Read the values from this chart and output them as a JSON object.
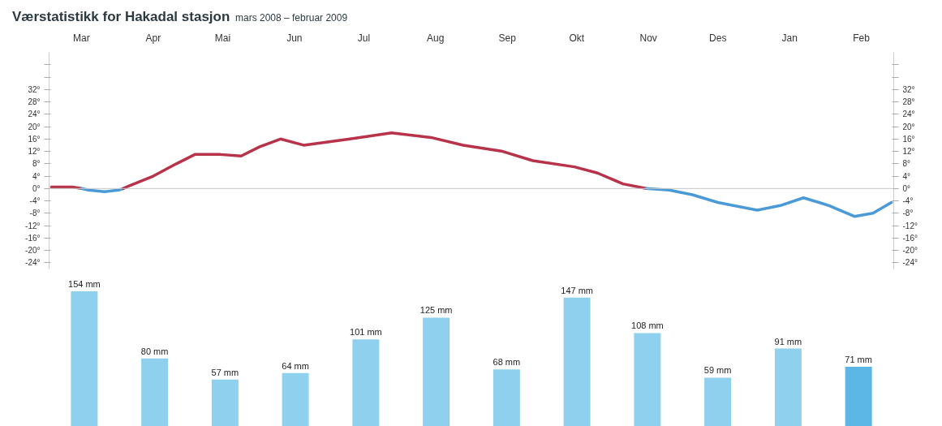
{
  "chart_data": [
    {
      "type": "line",
      "title": "Værstatistikk for Hakadal stasjon",
      "subtitle": "mars 2008 – februar 2009",
      "xlim": [
        "2008-03-01",
        "2009-03-01"
      ],
      "xticks": [
        {
          "value": "2008-03-15",
          "label": "Mar"
        },
        {
          "value": "2008-04-15",
          "label": "Apr"
        },
        {
          "value": "2008-05-15",
          "label": "Mai"
        },
        {
          "value": "2008-06-15",
          "label": "Jun"
        },
        {
          "value": "2008-07-15",
          "label": "Jul"
        },
        {
          "value": "2008-08-15",
          "label": "Aug"
        },
        {
          "value": "2008-09-15",
          "label": "Sep"
        },
        {
          "value": "2008-10-15",
          "label": "Okt"
        },
        {
          "value": "2008-11-15",
          "label": "Nov"
        },
        {
          "value": "2008-12-15",
          "label": "Des"
        },
        {
          "value": "2009-01-15",
          "label": "Jan"
        },
        {
          "value": "2009-02-15",
          "label": "Feb"
        }
      ],
      "ylim": [
        -26,
        44
      ],
      "yticks": [
        {
          "value": -24,
          "label": "-24°"
        },
        {
          "value": -20,
          "label": "-20°"
        },
        {
          "value": -16,
          "label": "-16°"
        },
        {
          "value": -12,
          "label": "-12°"
        },
        {
          "value": -8,
          "label": "-8°"
        },
        {
          "value": -4,
          "label": "-4°"
        },
        {
          "value": 0,
          "label": "0°"
        },
        {
          "value": 4,
          "label": "4°"
        },
        {
          "value": 8,
          "label": "8°"
        },
        {
          "value": 12,
          "label": "12°"
        },
        {
          "value": 16,
          "label": "16°"
        },
        {
          "value": 20,
          "label": "20°"
        },
        {
          "value": 24,
          "label": "24°"
        },
        {
          "value": 28,
          "label": "28°"
        },
        {
          "value": 32,
          "label": "32°"
        },
        {
          "value": 36,
          "label": null
        },
        {
          "value": 40,
          "label": null
        }
      ],
      "y2lim": [
        -26,
        44
      ],
      "y2ticks": [
        {
          "value": -24,
          "label": "-24°"
        },
        {
          "value": -20,
          "label": "-20°"
        },
        {
          "value": -16,
          "label": "-16°"
        },
        {
          "value": -12,
          "label": "-12°"
        },
        {
          "value": -8,
          "label": "-8°"
        },
        {
          "value": -4,
          "label": "-4°"
        },
        {
          "value": 0,
          "label": "0°"
        },
        {
          "value": 4,
          "label": "4°"
        },
        {
          "value": 8,
          "label": "8°"
        },
        {
          "value": 12,
          "label": "12°"
        },
        {
          "value": 16,
          "label": "16°"
        },
        {
          "value": 20,
          "label": "20°"
        },
        {
          "value": 24,
          "label": "24°"
        },
        {
          "value": 28,
          "label": "28°"
        },
        {
          "value": 32,
          "label": "32°"
        },
        {
          "value": 36,
          "label": null
        },
        {
          "value": 40,
          "label": null
        }
      ],
      "ref_lines": [
        {
          "axis": "y",
          "value": 0,
          "color": "#c8c8c8"
        }
      ],
      "line_style": "solid",
      "marker": "none",
      "series": [
        {
          "color": "#b8324a",
          "x": [
            "2008-03-02",
            "2008-03-11",
            "2008-03-15"
          ],
          "values": [
            0.5,
            0.5,
            0
          ]
        },
        {
          "color": "#4a9ad8",
          "x": [
            "2008-03-15",
            "2008-03-18",
            "2008-03-25",
            "2008-03-31",
            "2008-04-02"
          ],
          "values": [
            0,
            -0.5,
            -1,
            -0.5,
            0
          ]
        },
        {
          "color": "#b8324a",
          "x": [
            "2008-04-02",
            "2008-04-05",
            "2008-04-15",
            "2008-04-25",
            "2008-05-03",
            "2008-05-14",
            "2008-05-23",
            "2008-05-31",
            "2008-06-09",
            "2008-06-19",
            "2008-07-09",
            "2008-07-27",
            "2008-08-13",
            "2008-08-27",
            "2008-09-13",
            "2008-09-26",
            "2008-10-14",
            "2008-10-24",
            "2008-11-04",
            "2008-11-14"
          ],
          "values": [
            0,
            1,
            4,
            8,
            11,
            11,
            10.5,
            13.5,
            16,
            14,
            16,
            18,
            16.5,
            14,
            12,
            9,
            7,
            5,
            1.5,
            0
          ]
        },
        {
          "color": "#4a9ad8",
          "x": [
            "2008-11-14",
            "2008-11-24",
            "2008-12-04",
            "2008-12-15",
            "2009-01-01",
            "2009-01-11",
            "2009-01-21",
            "2009-02-01",
            "2009-02-12",
            "2009-02-20",
            "2009-02-28"
          ],
          "values": [
            0,
            -0.5,
            -2,
            -4.5,
            -7,
            -5.5,
            -3,
            -5.5,
            -9,
            -8,
            -4.5
          ]
        }
      ]
    },
    {
      "type": "bar",
      "categories": [
        null,
        null,
        null,
        null,
        null,
        null,
        null,
        null,
        null,
        null,
        null,
        null
      ],
      "values": [
        154,
        80,
        57,
        64,
        101,
        125,
        68,
        147,
        108,
        59,
        91,
        71
      ],
      "value_labels": [
        "154 mm",
        "80 mm",
        "57 mm",
        "64 mm",
        "101 mm",
        "125 mm",
        "68 mm",
        "147 mm",
        "108 mm",
        "59 mm",
        "91 mm",
        "71 mm"
      ],
      "colors": [
        "#8fd0ee",
        "#8fd0ee",
        "#8fd0ee",
        "#8fd0ee",
        "#8fd0ee",
        "#8fd0ee",
        "#8fd0ee",
        "#8fd0ee",
        "#8fd0ee",
        "#8fd0ee",
        "#8fd0ee",
        "#5cb6e6"
      ]
    }
  ]
}
